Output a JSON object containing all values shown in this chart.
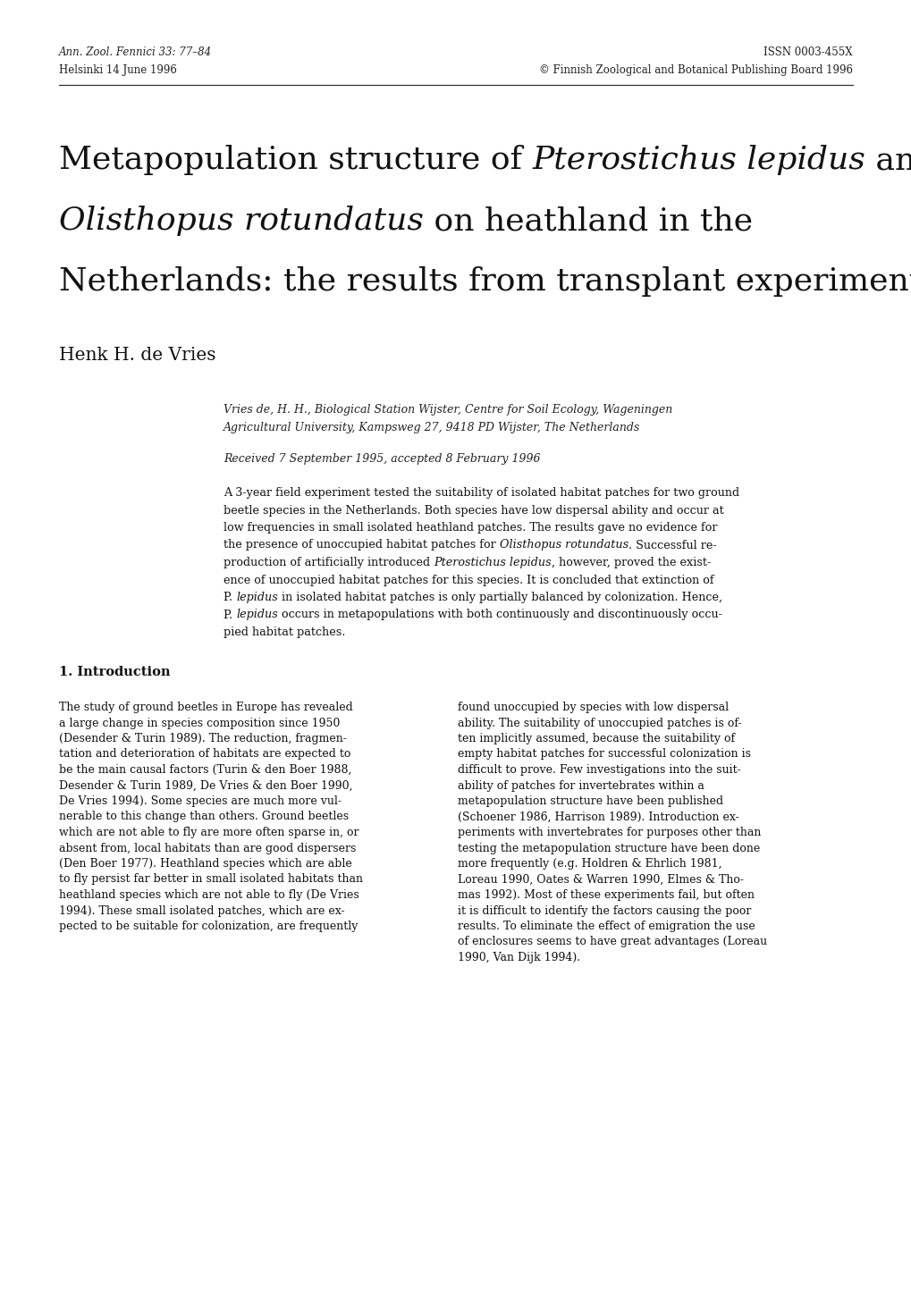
{
  "background_color": "#ffffff",
  "header_left_line1": "Ann. Zool. Fennici 33: 77–84",
  "header_left_line2": "Helsinki 14 June 1996",
  "header_right_line1": "ISSN 0003-455X",
  "header_right_line2": "© Finnish Zoological and Botanical Publishing Board 1996",
  "author": "Henk H. de Vries",
  "affiliation_line1": "Vries de, H. H., Biological Station Wijster, Centre for Soil Ecology, Wageningen",
  "affiliation_line2": "Agricultural University, Kampsweg 27, 9418 PD Wijster, The Netherlands",
  "received": "Received 7 September 1995, accepted 8 February 1996",
  "section1_title": "1. Introduction",
  "abs_lines": [
    [
      [
        "A 3-year field experiment tested the suitability of isolated habitat patches for two ground",
        false
      ]
    ],
    [
      [
        "beetle species in the Netherlands. Both species have low dispersal ability and occur at",
        false
      ]
    ],
    [
      [
        "low frequencies in small isolated heathland patches. The results gave no evidence for",
        false
      ]
    ],
    [
      [
        "the presence of unoccupied habitat patches for ",
        false
      ],
      [
        "Olisthopus rotundatus",
        true
      ],
      [
        ". Successful re-",
        false
      ]
    ],
    [
      [
        "production of artificially introduced ",
        false
      ],
      [
        "Pterostichus lepidus",
        true
      ],
      [
        ", however, proved the exist-",
        false
      ]
    ],
    [
      [
        "ence of unoccupied habitat patches for this species. It is concluded that extinction of",
        false
      ]
    ],
    [
      [
        "P. ",
        false
      ],
      [
        "lepidus",
        true
      ],
      [
        " in isolated habitat patches is only partially balanced by colonization. Hence,",
        false
      ]
    ],
    [
      [
        "P. ",
        false
      ],
      [
        "lepidus",
        true
      ],
      [
        " occurs in metapopulations with both continuously and discontinuously occu-",
        false
      ]
    ],
    [
      [
        "pied habitat patches.",
        false
      ]
    ]
  ],
  "col1_lines": [
    "The study of ground beetles in Europe has revealed",
    "a large change in species composition since 1950",
    "(Desender & Turin 1989). The reduction, fragmen-",
    "tation and deterioration of habitats are expected to",
    "be the main causal factors (Turin & den Boer 1988,",
    "Desender & Turin 1989, De Vries & den Boer 1990,",
    "De Vries 1994). Some species are much more vul-",
    "nerable to this change than others. Ground beetles",
    "which are not able to fly are more often sparse in, or",
    "absent from, local habitats than are good dispersers",
    "(Den Boer 1977). Heathland species which are able",
    "to fly persist far better in small isolated habitats than",
    "heathland species which are not able to fly (De Vries",
    "1994). These small isolated patches, which are ex-",
    "pected to be suitable for colonization, are frequently"
  ],
  "col2_lines": [
    "found unoccupied by species with low dispersal",
    "ability. The suitability of unoccupied patches is of-",
    "ten implicitly assumed, because the suitability of",
    "empty habitat patches for successful colonization is",
    "difficult to prove. Few investigations into the suit-",
    "ability of patches for invertebrates within a",
    "metapopulation structure have been published",
    "(Schoener 1986, Harrison 1989). Introduction ex-",
    "periments with invertebrates for purposes other than",
    "testing the metapopulation structure have been done",
    "more frequently (e.g. Holdren & Ehrlich 1981,",
    "Loreau 1990, Oates & Warren 1990, Elmes & Tho-",
    "mas 1992). Most of these experiments fail, but often",
    "it is difficult to identify the factors causing the poor",
    "results. To eliminate the effect of emigration the use",
    "of enclosures seems to have great advantages (Loreau",
    "1990, Van Dijk 1994)."
  ]
}
